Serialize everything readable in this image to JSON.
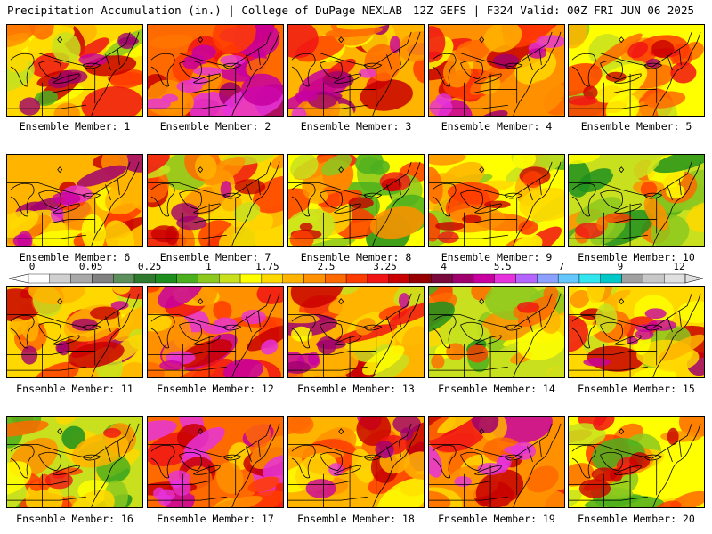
{
  "header": {
    "title": "Precipitation Accumulation (in.) | College of DuPage NEXLAB",
    "run_info": "12Z GEFS | F324 Valid: 00Z FRI JUN 06 2025"
  },
  "panels": [
    {
      "label": "Ensemble Member: 1",
      "wetness": 0.45
    },
    {
      "label": "Ensemble Member: 2",
      "wetness": 0.75
    },
    {
      "label": "Ensemble Member: 3",
      "wetness": 0.6
    },
    {
      "label": "Ensemble Member: 4",
      "wetness": 0.62
    },
    {
      "label": "Ensemble Member: 5",
      "wetness": 0.42
    },
    {
      "label": "Ensemble Member: 6",
      "wetness": 0.58
    },
    {
      "label": "Ensemble Member: 7",
      "wetness": 0.52
    },
    {
      "label": "Ensemble Member: 8",
      "wetness": 0.35
    },
    {
      "label": "Ensemble Member: 9",
      "wetness": 0.4
    },
    {
      "label": "Ensemble Member: 10",
      "wetness": 0.25
    },
    {
      "label": "Ensemble Member: 11",
      "wetness": 0.5
    },
    {
      "label": "Ensemble Member: 12",
      "wetness": 0.68
    },
    {
      "label": "Ensemble Member: 13",
      "wetness": 0.55
    },
    {
      "label": "Ensemble Member: 14",
      "wetness": 0.28
    },
    {
      "label": "Ensemble Member: 15",
      "wetness": 0.5
    },
    {
      "label": "Ensemble Member: 16",
      "wetness": 0.3
    },
    {
      "label": "Ensemble Member: 17",
      "wetness": 0.72
    },
    {
      "label": "Ensemble Member: 18",
      "wetness": 0.6
    },
    {
      "label": "Ensemble Member: 19",
      "wetness": 0.7
    },
    {
      "label": "Ensemble Member: 20",
      "wetness": 0.4
    }
  ],
  "legend": {
    "labels": [
      "0",
      "0.05",
      "0.25",
      "1",
      "1.75",
      "2.5",
      "3.25",
      "4",
      "5.5",
      "7",
      "9",
      "12"
    ],
    "colors": [
      "#ffffff",
      "#d0d0d0",
      "#a8a8a8",
      "#808080",
      "#5c8f5c",
      "#2f7a2f",
      "#1e8f1e",
      "#4caf1e",
      "#8cc81e",
      "#c8e01e",
      "#ffff00",
      "#ffd800",
      "#ffb400",
      "#ff9000",
      "#ff6a00",
      "#ff3c00",
      "#f01414",
      "#c80000",
      "#960000",
      "#7a0a3c",
      "#a0006e",
      "#c800a0",
      "#e632dc",
      "#b464ff",
      "#8ca0ff",
      "#64c8ff",
      "#32e6f0",
      "#00c8c8",
      "#a0a0a0",
      "#c8c8c8",
      "#e0e0e0"
    ]
  }
}
